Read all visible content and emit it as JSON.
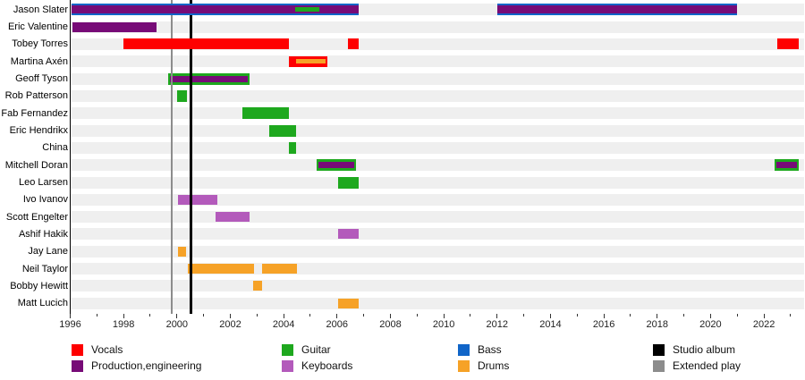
{
  "chart_data": {
    "type": "timeline",
    "description": "Band members timeline (Gantt-style) with roles by color, 1996-2023",
    "x_axis": {
      "min_year": 1996,
      "max_year": 2023.5,
      "labeled_years": [
        1996,
        1998,
        2000,
        2002,
        2004,
        2006,
        2008,
        2010,
        2012,
        2014,
        2016,
        2018,
        2020,
        2022
      ],
      "minor_tick_every_year": true
    },
    "role_colors": {
      "Vocals": "#fe0000",
      "Production": "#770b77",
      "Guitar": "#1ea81e",
      "Keyboards": "#b35abb",
      "Bass": "#1065c8",
      "Drums": "#f6a227"
    },
    "markers": [
      {
        "label": "Extended play",
        "year": 1999.8,
        "color": "#8c8c8c"
      },
      {
        "label": "Studio album",
        "year": 2000.53,
        "color": "#000000"
      }
    ],
    "legend": [
      {
        "label": "Vocals",
        "color": "#fe0000"
      },
      {
        "label": "Production,engineering",
        "color": "#770b77"
      },
      {
        "label": "Guitar",
        "color": "#1ea81e"
      },
      {
        "label": "Keyboards",
        "color": "#b35abb"
      },
      {
        "label": "Bass",
        "color": "#1065c8"
      },
      {
        "label": "Drums",
        "color": "#f6a227"
      },
      {
        "label": "Studio album",
        "color": "#000000"
      },
      {
        "label": "Extended play",
        "color": "#8c8c8c"
      }
    ],
    "people": [
      {
        "name": "Jason Slater",
        "bars": [
          {
            "start": 1996.05,
            "end": 2006.8,
            "over": true,
            "layers": [
              {
                "role": "Bass",
                "h": 13
              },
              {
                "role": "Production",
                "h": 9
              },
              {
                "role": "Guitar",
                "h": 5,
                "start": 2004.43,
                "end": 2005.34
              }
            ]
          },
          {
            "start": 2012.0,
            "end": 2021.0,
            "over": true,
            "layers": [
              {
                "role": "Bass",
                "h": 13
              },
              {
                "role": "Production",
                "h": 9
              }
            ]
          }
        ]
      },
      {
        "name": "Eric Valentine",
        "bars": [
          {
            "start": 1996.1,
            "end": 1999.25,
            "over": true,
            "layers": [
              {
                "role": "Production",
                "h": 11
              }
            ]
          }
        ]
      },
      {
        "name": "Tobey Torres",
        "bars": [
          {
            "start": 1998.0,
            "end": 2004.2,
            "over": true,
            "layers": [
              {
                "role": "Vocals",
                "h": 12
              }
            ]
          },
          {
            "start": 2006.4,
            "end": 2006.8,
            "over": true,
            "layers": [
              {
                "role": "Vocals",
                "h": 12
              }
            ]
          },
          {
            "start": 2022.5,
            "end": 2023.3,
            "over": true,
            "layers": [
              {
                "role": "Vocals",
                "h": 12
              }
            ]
          }
        ]
      },
      {
        "name": "Martina Axén",
        "bars": [
          {
            "start": 2004.2,
            "end": 2005.65,
            "over": true,
            "layers": [
              {
                "role": "Vocals",
                "h": 12
              },
              {
                "role": "Drums",
                "h": 5,
                "start": 2004.45,
                "end": 2005.58
              }
            ]
          }
        ]
      },
      {
        "name": "Geoff Tyson",
        "bars": [
          {
            "start": 1999.68,
            "end": 2002.72,
            "layers": [
              {
                "role": "Guitar",
                "h": 13
              },
              {
                "role": "Production",
                "h": 7,
                "start": 1999.75,
                "end": 2002.65
              }
            ]
          }
        ]
      },
      {
        "name": "Rob Patterson",
        "bars": [
          {
            "start": 2000.0,
            "end": 2000.37,
            "layers": [
              {
                "role": "Guitar",
                "h": 13
              }
            ]
          }
        ]
      },
      {
        "name": "Fab Fernandez",
        "bars": [
          {
            "start": 2002.45,
            "end": 2004.2,
            "layers": [
              {
                "role": "Guitar",
                "h": 13
              }
            ]
          }
        ]
      },
      {
        "name": "Eric Hendrikx",
        "bars": [
          {
            "start": 2003.45,
            "end": 2004.45,
            "layers": [
              {
                "role": "Guitar",
                "h": 13
              }
            ]
          }
        ]
      },
      {
        "name": "China",
        "bars": [
          {
            "start": 2004.2,
            "end": 2004.45,
            "layers": [
              {
                "role": "Guitar",
                "h": 13
              }
            ]
          }
        ]
      },
      {
        "name": "Mitchell Doran",
        "bars": [
          {
            "start": 2005.25,
            "end": 2006.7,
            "layers": [
              {
                "role": "Guitar",
                "h": 13
              },
              {
                "role": "Production",
                "h": 7,
                "start": 2005.3,
                "end": 2006.65
              }
            ]
          },
          {
            "start": 2022.4,
            "end": 2023.3,
            "layers": [
              {
                "role": "Guitar",
                "h": 13
              },
              {
                "role": "Production",
                "h": 7,
                "start": 2022.45,
                "end": 2023.25
              }
            ]
          }
        ]
      },
      {
        "name": "Leo Larsen",
        "bars": [
          {
            "start": 2006.05,
            "end": 2006.8,
            "layers": [
              {
                "role": "Guitar",
                "h": 13
              }
            ]
          }
        ]
      },
      {
        "name": "Ivo Ivanov",
        "bars": [
          {
            "start": 2000.05,
            "end": 2001.5,
            "layers": [
              {
                "role": "Keyboards",
                "h": 11
              }
            ]
          }
        ]
      },
      {
        "name": "Scott Engelter",
        "bars": [
          {
            "start": 2001.45,
            "end": 2002.72,
            "layers": [
              {
                "role": "Keyboards",
                "h": 11
              }
            ]
          }
        ]
      },
      {
        "name": "Ashif Hakik",
        "bars": [
          {
            "start": 2006.05,
            "end": 2006.82,
            "layers": [
              {
                "role": "Keyboards",
                "h": 11
              }
            ]
          }
        ]
      },
      {
        "name": "Jay Lane",
        "bars": [
          {
            "start": 2000.05,
            "end": 2000.35,
            "layers": [
              {
                "role": "Drums",
                "h": 11
              }
            ]
          }
        ]
      },
      {
        "name": "Neil Taylor",
        "bars": [
          {
            "start": 2000.4,
            "end": 2002.9,
            "layers": [
              {
                "role": "Drums",
                "h": 11
              }
            ]
          },
          {
            "start": 2003.2,
            "end": 2004.5,
            "layers": [
              {
                "role": "Drums",
                "h": 11
              }
            ]
          }
        ]
      },
      {
        "name": "Bobby Hewitt",
        "bars": [
          {
            "start": 2002.85,
            "end": 2003.2,
            "layers": [
              {
                "role": "Drums",
                "h": 11
              }
            ]
          }
        ]
      },
      {
        "name": "Matt Lucich",
        "bars": [
          {
            "start": 2006.05,
            "end": 2006.82,
            "layers": [
              {
                "role": "Drums",
                "h": 11
              }
            ]
          }
        ]
      }
    ]
  }
}
